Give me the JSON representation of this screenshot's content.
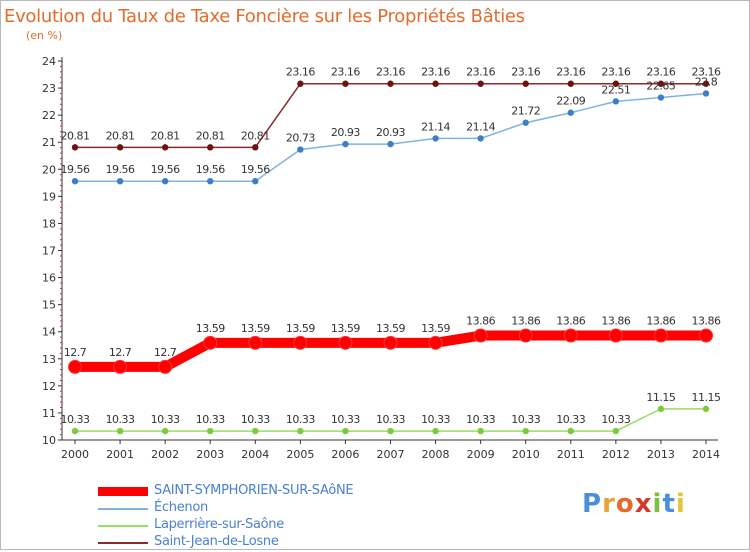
{
  "title": "Evolution du Taux de Taxe Foncière sur les Propriétés Bâties",
  "subtitle": "(en %)",
  "logo": {
    "letters": [
      "P",
      "r",
      "o",
      "x",
      "i",
      "t",
      "i"
    ],
    "colors": [
      "#4a90d9",
      "#e8a33a",
      "#e86a2a",
      "#d33a2a",
      "#7bbf3a",
      "#4a90d9",
      "#e8c33a"
    ]
  },
  "chart_data": {
    "type": "line",
    "title": "Evolution du Taux de Taxe Foncière sur les Propriétés Bâties",
    "ylabel": "(en %)",
    "xlabel": "",
    "x": [
      "2000",
      "2001",
      "2002",
      "2003",
      "2004",
      "2005",
      "2006",
      "2007",
      "2008",
      "2009",
      "2010",
      "2011",
      "2012",
      "2013",
      "2014"
    ],
    "ylim": [
      10,
      24
    ],
    "yticks": [
      "10",
      "11",
      "12",
      "13",
      "14",
      "15",
      "16",
      "17",
      "18",
      "19",
      "20",
      "21",
      "22",
      "23",
      "24"
    ],
    "grid": false,
    "legend_position": "bottom-left",
    "series": [
      {
        "name": "SAINT-SYMPHORIEN-SUR-SAôNE",
        "color": "#ff0000",
        "marker_color": "#ff0000",
        "emphasis": true,
        "values": [
          12.7,
          12.7,
          12.7,
          13.59,
          13.59,
          13.59,
          13.59,
          13.59,
          13.59,
          13.86,
          13.86,
          13.86,
          13.86,
          13.86,
          13.86
        ],
        "labels": [
          "12.7",
          "12.7",
          "12.7",
          "13.59",
          "13.59",
          "13.59",
          "13.59",
          "13.59",
          "13.59",
          "13.86",
          "13.86",
          "13.86",
          "13.86",
          "13.86",
          "13.86"
        ]
      },
      {
        "name": "Échenon",
        "color": "#7fb2df",
        "marker_color": "#3d7fc4",
        "emphasis": false,
        "values": [
          19.56,
          19.56,
          19.56,
          19.56,
          19.56,
          20.73,
          20.93,
          20.93,
          21.14,
          21.14,
          21.72,
          22.09,
          22.51,
          22.65,
          22.8
        ],
        "labels": [
          "19.56",
          "19.56",
          "19.56",
          "19.56",
          "19.56",
          "20.73",
          "20.93",
          "20.93",
          "21.14",
          "21.14",
          "21.72",
          "22.09",
          "22.51",
          "22.65",
          "22.8"
        ]
      },
      {
        "name": "Laperrière-sur-Saône",
        "color": "#99dd66",
        "marker_color": "#7acb3e",
        "emphasis": false,
        "values": [
          10.33,
          10.33,
          10.33,
          10.33,
          10.33,
          10.33,
          10.33,
          10.33,
          10.33,
          10.33,
          10.33,
          10.33,
          10.33,
          11.15,
          11.15
        ],
        "labels": [
          "10.33",
          "10.33",
          "10.33",
          "10.33",
          "10.33",
          "10.33",
          "10.33",
          "10.33",
          "10.33",
          "10.33",
          "10.33",
          "10.33",
          "10.33",
          "11.15",
          "11.15"
        ]
      },
      {
        "name": "Saint-Jean-de-Losne",
        "color": "#8a2a2a",
        "marker_color": "#6b1212",
        "emphasis": false,
        "values": [
          20.81,
          20.81,
          20.81,
          20.81,
          20.81,
          23.16,
          23.16,
          23.16,
          23.16,
          23.16,
          23.16,
          23.16,
          23.16,
          23.16,
          23.16
        ],
        "labels": [
          "20.81",
          "20.81",
          "20.81",
          "20.81",
          "20.81",
          "23.16",
          "23.16",
          "23.16",
          "23.16",
          "23.16",
          "23.16",
          "23.16",
          "23.16",
          "23.16",
          "23.16"
        ]
      }
    ]
  }
}
